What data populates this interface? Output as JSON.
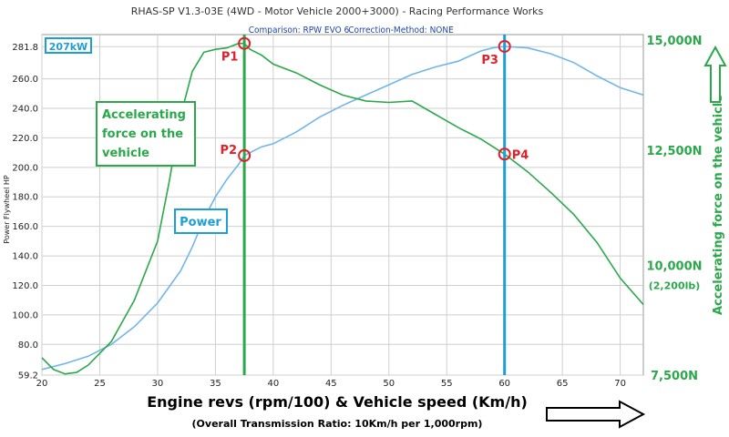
{
  "chart_data": {
    "type": "line",
    "title": "RHAS-SP V1.3-03E  (4WD - Motor Vehicle 2000+3000) - Racing Performance Works",
    "subtitle_comparison": "Comparison: RPW EVO 6",
    "subtitle_correction": "Correction-Method: NONE",
    "xlabel": "Engine revs (rpm/100) & Vehicle speed (Km/h)",
    "xlabel_sub": "(Overall Transmission Ratio: 10Km/h per 1,000rpm)",
    "ylabel_left": "Power Flywheel HP",
    "ylabel_right": "Accelerating force on the vehicle",
    "xlim": [
      20,
      72
    ],
    "ylim": [
      59.2,
      290
    ],
    "x_ticks": [
      20,
      25,
      30,
      35,
      40,
      45,
      50,
      55,
      60,
      65,
      70
    ],
    "y_ticks": [
      59.2,
      80.0,
      100.0,
      120.0,
      140.0,
      160.0,
      180.0,
      200.0,
      220.0,
      240.0,
      260.0,
      281.8
    ],
    "y_tick_labels": [
      "59.2",
      "80.0",
      "100.0",
      "120.0",
      "140.0",
      "160.0",
      "180.0",
      "200.0",
      "220.0",
      "240.0",
      "260.0",
      "281.8"
    ],
    "right_ticks": [
      {
        "label": "15,000N",
        "sub": "",
        "y": 290
      },
      {
        "label": "12,500N",
        "sub": "",
        "y": 211.5
      },
      {
        "label": "10,000N",
        "sub": "(2,200lb)",
        "y": 133.5
      },
      {
        "label": "7,500N",
        "sub": "",
        "y": 55.5
      }
    ],
    "peak_power_label": "207kW",
    "grid": true,
    "series": [
      {
        "name": "Power",
        "color": "#6fb6ea",
        "x": [
          20,
          22,
          24,
          26,
          28,
          30,
          32,
          33,
          34,
          35,
          36,
          37,
          37.5,
          38,
          39,
          40,
          42,
          44,
          46,
          48,
          50,
          52,
          54,
          56,
          58,
          59,
          60,
          62,
          64,
          66,
          68,
          70,
          72
        ],
        "y": [
          63,
          67,
          72,
          80,
          92,
          108,
          130,
          146,
          165,
          180,
          192,
          202,
          208,
          210,
          214,
          216,
          224,
          234,
          242,
          249,
          256,
          263,
          268,
          272,
          279,
          281,
          282,
          281,
          277,
          271,
          262,
          254,
          249
        ]
      },
      {
        "name": "Accelerating force on the vehicle",
        "color": "#2aa84a",
        "x": [
          20,
          21,
          22,
          23,
          24,
          26,
          28,
          30,
          31,
          32,
          33,
          34,
          35,
          36,
          37,
          37.5,
          38,
          39,
          40,
          42,
          44,
          46,
          48,
          50,
          52,
          54,
          56,
          58,
          60,
          62,
          64,
          66,
          68,
          70,
          72
        ],
        "y": [
          71,
          63,
          60,
          61,
          66,
          82,
          110,
          150,
          190,
          235,
          265,
          278,
          280,
          281,
          284,
          284,
          280,
          276,
          270,
          264,
          256,
          249,
          245,
          244,
          245,
          236,
          227,
          219,
          209,
          197,
          183,
          168,
          149,
          125,
          107
        ]
      }
    ],
    "annotations": {
      "force_label": [
        "Accelerating",
        "force on the",
        "vehicle"
      ],
      "power_label": "Power",
      "points": [
        {
          "label": "P1",
          "x": 37.5,
          "y": 284
        },
        {
          "label": "P2",
          "x": 37.5,
          "y": 208
        },
        {
          "label": "P3",
          "x": 60,
          "y": 282
        },
        {
          "label": "P4",
          "x": 60,
          "y": 209
        }
      ],
      "vlines": [
        {
          "x": 37.5,
          "color": "#2aa84a"
        },
        {
          "x": 60,
          "color": "#1b9fd6"
        }
      ]
    }
  }
}
